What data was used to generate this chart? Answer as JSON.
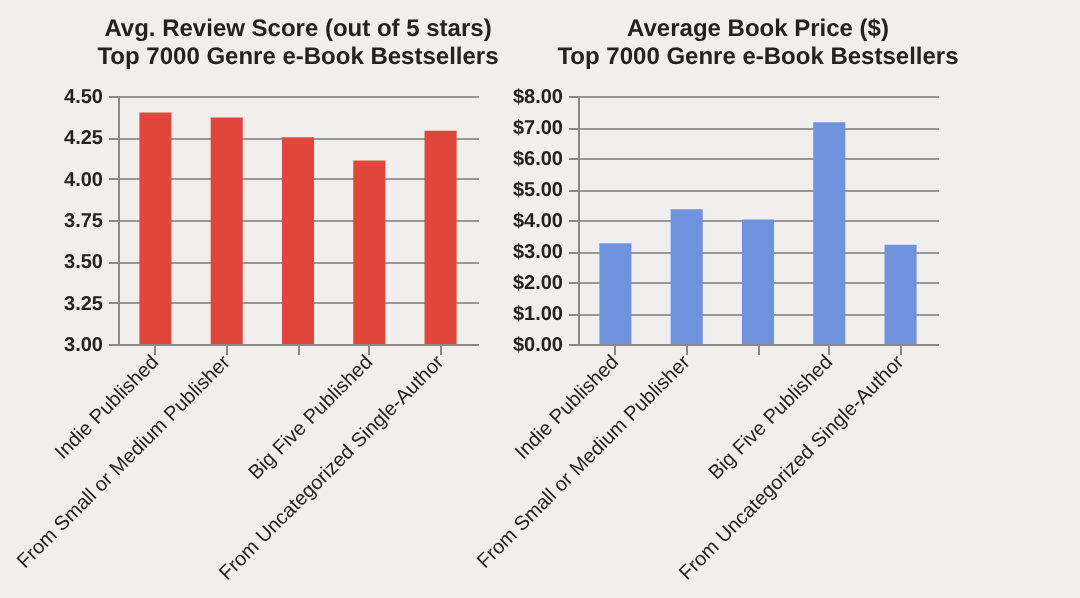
{
  "chart_data": [
    {
      "type": "bar",
      "title": "Avg. Review Score (out of 5 stars)",
      "subtitle": "Top 7000 Genre e-Book Bestsellers",
      "categories": [
        "Indie Published",
        "From Small or Medium Publisher",
        null,
        "Big Five Published",
        "From Uncategorized Single-Author"
      ],
      "values": [
        4.4,
        4.37,
        4.25,
        4.11,
        4.29
      ],
      "color": "#e0463b",
      "ylim": [
        3,
        4.5
      ],
      "yticks": [
        {
          "value": 3,
          "label": "3.00"
        },
        {
          "value": 3.25,
          "label": "3.25"
        },
        {
          "value": 3.5,
          "label": "3.50"
        },
        {
          "value": 3.75,
          "label": "3.75"
        },
        {
          "value": 4,
          "label": "4.00"
        },
        {
          "value": 4.25,
          "label": "4.25"
        },
        {
          "value": 4.5,
          "label": "4.50"
        }
      ],
      "grid": "y"
    },
    {
      "type": "bar",
      "title": "Average Book Price ($)",
      "subtitle": "Top 7000 Genre e-Book Bestsellers",
      "categories": [
        "Indie Published",
        "From Small or Medium Publisher",
        null,
        "Big Five Published",
        "From Uncategorized Single-Author"
      ],
      "values": [
        3.25,
        4.35,
        4.02,
        7.15,
        3.2
      ],
      "color": "#6e93dc",
      "ylim": [
        0,
        8
      ],
      "yticks": [
        {
          "value": 0,
          "label": "$0.00"
        },
        {
          "value": 1,
          "label": "$1.00"
        },
        {
          "value": 2,
          "label": "$2.00"
        },
        {
          "value": 3,
          "label": "$3.00"
        },
        {
          "value": 4,
          "label": "$4.00"
        },
        {
          "value": 5,
          "label": "$5.00"
        },
        {
          "value": 6,
          "label": "$6.00"
        },
        {
          "value": 7,
          "label": "$7.00"
        },
        {
          "value": 8,
          "label": "$8.00"
        }
      ],
      "grid": "y"
    }
  ]
}
